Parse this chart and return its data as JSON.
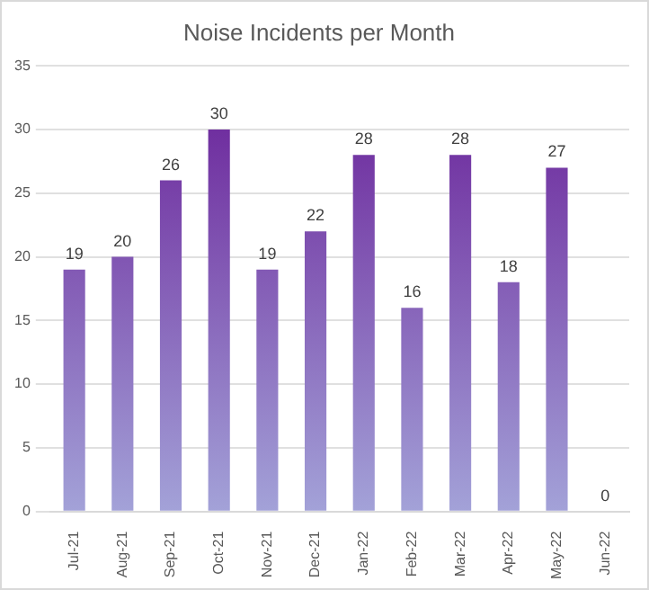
{
  "chart_data": {
    "type": "bar",
    "title": "Noise Incidents per Month",
    "categories": [
      "Jul-21",
      "Aug-21",
      "Sep-21",
      "Oct-21",
      "Nov-21",
      "Dec-21",
      "Jan-22",
      "Feb-22",
      "Mar-22",
      "Apr-22",
      "May-22",
      "Jun-22"
    ],
    "values": [
      19,
      20,
      26,
      30,
      19,
      22,
      28,
      16,
      28,
      18,
      27,
      0
    ],
    "color": "#7030a0",
    "ylim": [
      0,
      35
    ],
    "yticks": [
      0,
      5,
      10,
      15,
      20,
      25,
      30,
      35
    ],
    "grid": "y",
    "data_labels": true
  }
}
